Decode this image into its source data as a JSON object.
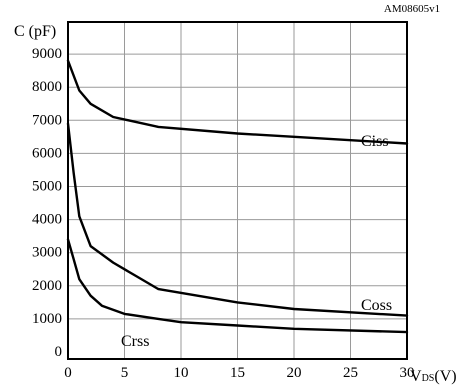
{
  "chart_data": {
    "type": "line",
    "code": "AM08605v1",
    "ylabel": "C (pF)",
    "xlabel_main": "V",
    "xlabel_sub": "DS",
    "xlabel_unit": "(V)",
    "xlim": [
      0,
      30
    ],
    "ylim": [
      0,
      10000
    ],
    "grid": true,
    "x_ticks": [
      "0",
      "5",
      "10",
      "15",
      "20",
      "25",
      "30"
    ],
    "y_ticks": [
      {
        "value": 0,
        "label": "0"
      },
      {
        "value": 1000,
        "label": "1000"
      },
      {
        "value": 2000,
        "label": "2000"
      },
      {
        "value": 3000,
        "label": "3000"
      },
      {
        "value": 4000,
        "label": "4000"
      },
      {
        "value": 5000,
        "label": "5000"
      },
      {
        "value": 6000,
        "label": "6000"
      },
      {
        "value": 7000,
        "label": "7000"
      },
      {
        "value": 8000,
        "label": "8000"
      },
      {
        "value": 9000,
        "label": "9000"
      }
    ],
    "series": [
      {
        "name": "Ciss",
        "x": [
          0,
          1,
          2,
          4,
          8,
          15,
          20,
          30
        ],
        "y": [
          8800,
          7900,
          7500,
          7100,
          6800,
          6600,
          6500,
          6300
        ]
      },
      {
        "name": "Coss",
        "x": [
          0,
          0.5,
          1,
          2,
          4,
          6,
          8,
          15,
          20,
          30
        ],
        "y": [
          6900,
          5400,
          4100,
          3200,
          2700,
          2300,
          1900,
          1500,
          1300,
          1100
        ]
      },
      {
        "name": "Crss",
        "x": [
          0,
          0.5,
          1,
          2,
          3,
          5,
          8,
          10,
          15,
          20,
          30
        ],
        "y": [
          3400,
          2800,
          2200,
          1700,
          1400,
          1150,
          1000,
          900,
          800,
          700,
          600
        ]
      }
    ]
  }
}
